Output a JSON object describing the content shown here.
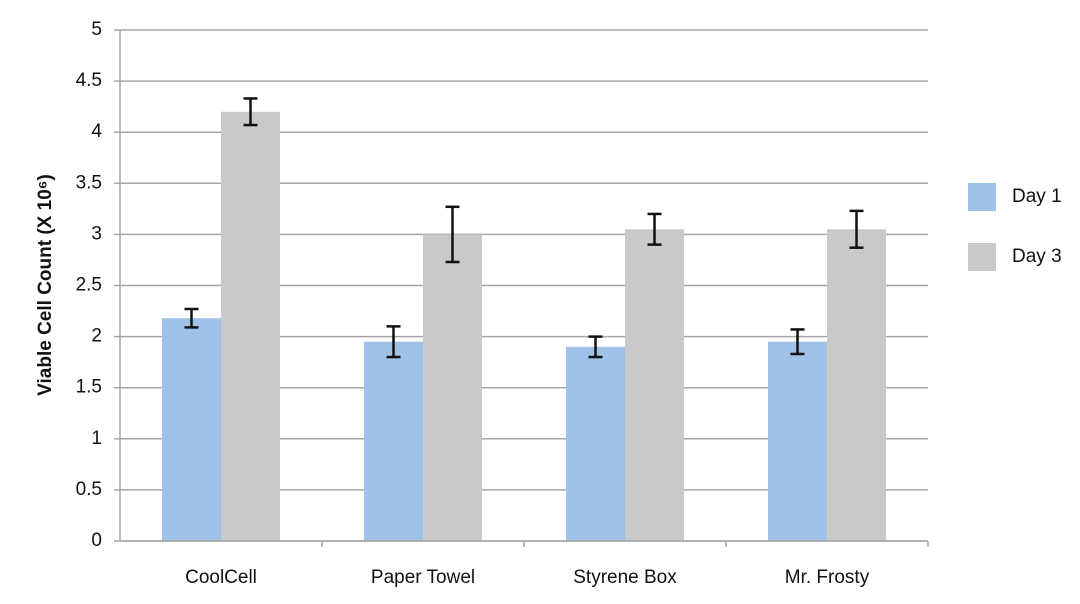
{
  "chart_data": {
    "type": "bar",
    "y_label": "Viable Cell Count (X 10⁶)",
    "categories": [
      "CoolCell",
      "Paper Towel",
      "Styrene Box",
      "Mr. Frosty"
    ],
    "series": [
      {
        "name": "Day 1",
        "color": "#9fc3e8",
        "values": [
          2.18,
          1.95,
          1.9,
          1.95
        ],
        "errors": [
          0.09,
          0.15,
          0.1,
          0.12
        ]
      },
      {
        "name": "Day 3",
        "color": "#c9c9c9",
        "values": [
          4.2,
          3.0,
          3.05,
          3.05
        ],
        "errors": [
          0.13,
          0.27,
          0.15,
          0.18
        ]
      }
    ],
    "ylim": [
      0,
      5
    ],
    "yticks": [
      0,
      0.5,
      1,
      1.5,
      2,
      2.5,
      3,
      3.5,
      4,
      4.5,
      5
    ],
    "grid": true,
    "legend": "right"
  }
}
